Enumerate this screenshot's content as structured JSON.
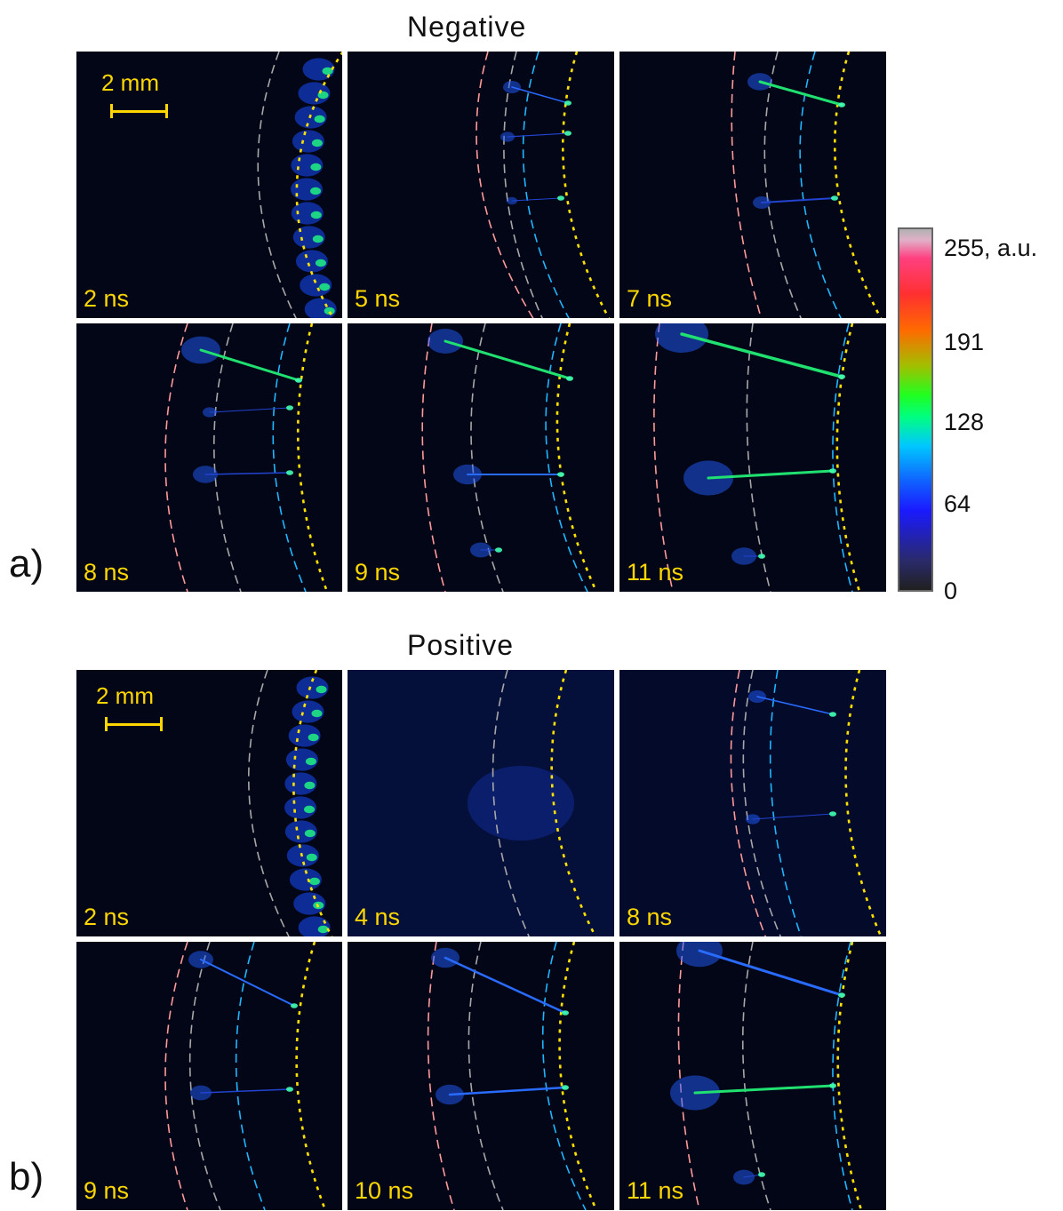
{
  "panel_a": {
    "title": "Negative",
    "letter": "a)",
    "scalebar_label": "2 mm",
    "frames": [
      {
        "time": "2 ns"
      },
      {
        "time": "5 ns"
      },
      {
        "time": "7 ns"
      },
      {
        "time": "8 ns"
      },
      {
        "time": "9 ns"
      },
      {
        "time": "11 ns"
      }
    ]
  },
  "panel_b": {
    "title": "Positive",
    "letter": "b)",
    "scalebar_label": "2 mm",
    "frames": [
      {
        "time": "2 ns"
      },
      {
        "time": "4 ns"
      },
      {
        "time": "8 ns"
      },
      {
        "time": "9 ns"
      },
      {
        "time": "10 ns"
      },
      {
        "time": "11 ns"
      }
    ]
  },
  "colorbar": {
    "ticks": [
      "255, a.u.",
      "191",
      "128",
      "64",
      "0"
    ],
    "colors": {
      "low": "#202020",
      "blue": "#1a1aff",
      "green": "#20ff20",
      "red": "#ff3030",
      "high": "#b0b0b0"
    }
  },
  "colors": {
    "label_yellow": "#ffd700",
    "pink_arc": "#ff9a9a",
    "gray_arc": "#a8a8a8",
    "cyan_arc": "#1fb7ff",
    "yellow_arc": "#ffe100",
    "background": "#020617"
  }
}
